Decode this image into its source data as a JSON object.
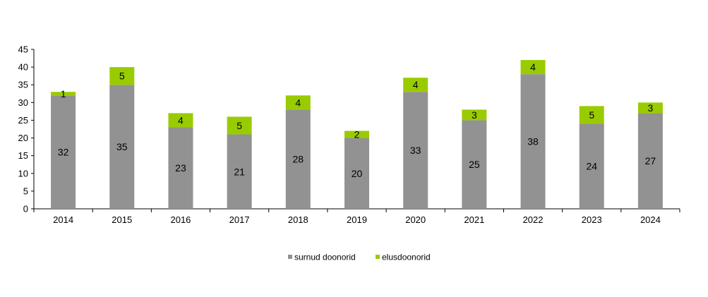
{
  "chart_data": {
    "type": "bar",
    "stacked": true,
    "categories": [
      "2014",
      "2015",
      "2016",
      "2017",
      "2018",
      "2019",
      "2020",
      "2021",
      "2022",
      "2023",
      "2024"
    ],
    "series": [
      {
        "name": "surnud doonorid",
        "color": "#929292",
        "values": [
          32,
          35,
          23,
          21,
          28,
          20,
          33,
          25,
          38,
          24,
          27
        ]
      },
      {
        "name": "elusdoonorid",
        "color": "#99cc00",
        "values": [
          1,
          5,
          4,
          5,
          4,
          2,
          4,
          3,
          4,
          5,
          3
        ]
      }
    ],
    "title": "",
    "xlabel": "",
    "ylabel": "",
    "ylim": [
      0,
      45
    ],
    "yticks": [
      0,
      5,
      10,
      15,
      20,
      25,
      30,
      35,
      40,
      45
    ],
    "grid": false,
    "legend_position": "bottom"
  }
}
